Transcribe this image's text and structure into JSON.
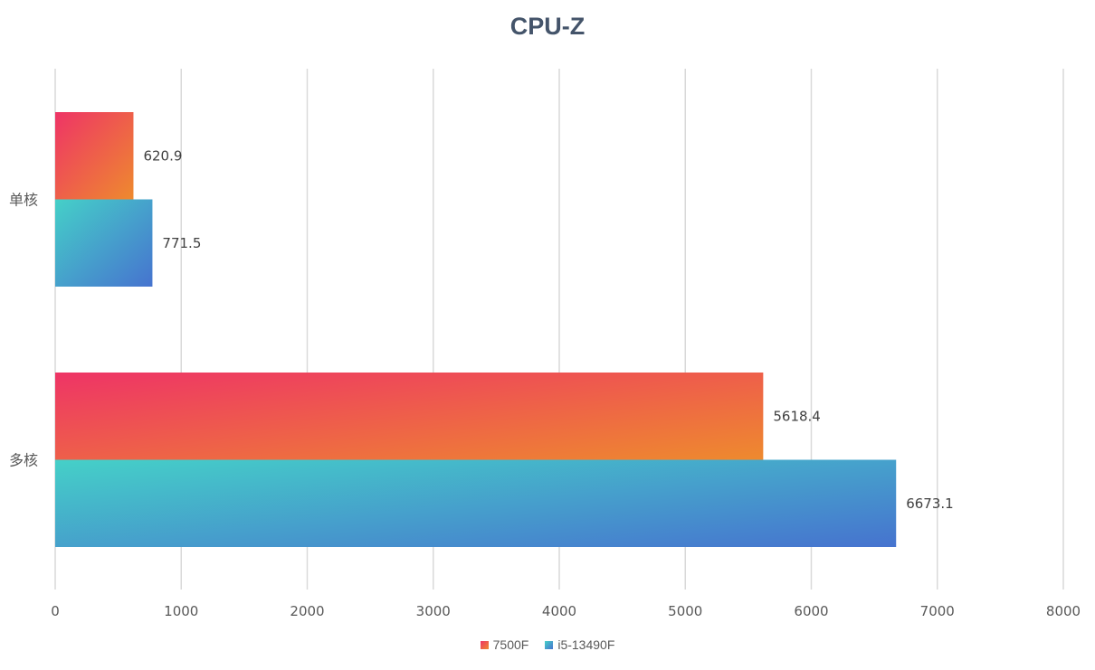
{
  "chart_data": {
    "type": "bar",
    "orientation": "horizontal",
    "title": "CPU-Z",
    "categories": [
      "单核",
      "多核"
    ],
    "series": [
      {
        "name": "7500F",
        "values": [
          620.9,
          5618.4
        ],
        "color_start": "#ee3466",
        "color_end": "#ee8a2e"
      },
      {
        "name": "i5-13490F",
        "values": [
          771.5,
          6673.1
        ],
        "color_start": "#45d0c8",
        "color_end": "#4673cf"
      }
    ],
    "data_labels": [
      [
        "620.9",
        "5618.4"
      ],
      [
        "771.5",
        "6673.1"
      ]
    ],
    "xlim": [
      0,
      8000
    ],
    "x_ticks": [
      0,
      1000,
      2000,
      3000,
      4000,
      5000,
      6000,
      7000,
      8000
    ],
    "x_tick_labels": [
      "0",
      "1000",
      "2000",
      "3000",
      "4000",
      "5000",
      "6000",
      "7000",
      "8000"
    ],
    "grid": true,
    "legend_position": "bottom"
  }
}
